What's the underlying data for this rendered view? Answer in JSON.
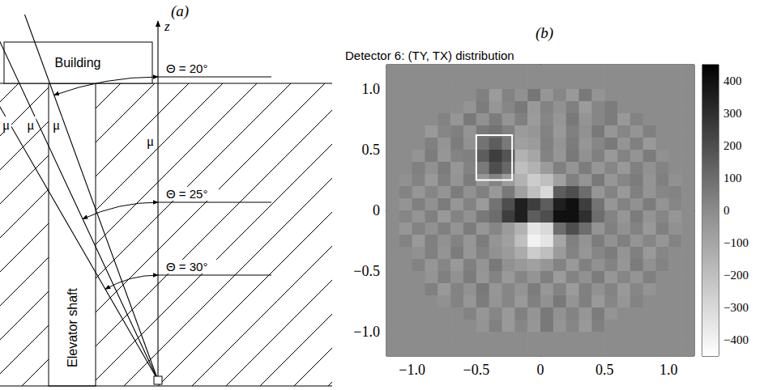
{
  "diagram": {
    "panel_label": "(a)",
    "building": "Building",
    "shaft": "Elevator shaft",
    "axis_label": "z",
    "muon_label": "μ",
    "angles": [
      {
        "value": 20,
        "label": "Θ = 20°"
      },
      {
        "value": 25,
        "label": "Θ = 25°"
      },
      {
        "value": 30,
        "label": "Θ = 30°"
      }
    ]
  },
  "chart_data": {
    "type": "heatmap",
    "panel_label": "(b)",
    "title": "Detector 6: (TY, TX) distribution",
    "xlim": [
      -1.2,
      1.2
    ],
    "xticks": [
      {
        "value": -1.0,
        "label": "−1.0"
      },
      {
        "value": -0.5,
        "label": "−0.5"
      },
      0,
      0.5,
      {
        "value": 1.0,
        "label": "1.0"
      }
    ],
    "ylim": [
      -1.2,
      1.2
    ],
    "yticks": [
      {
        "value": -1.0,
        "label": "−1.0"
      },
      {
        "value": -0.5,
        "label": "−0.5"
      },
      0,
      0.5,
      {
        "value": 1.0,
        "label": "1.0"
      }
    ],
    "colorbar": {
      "lim": [
        -450,
        450
      ],
      "ticks": [
        {
          "value": -400,
          "label": "−400"
        },
        {
          "value": -300,
          "label": "−300"
        },
        {
          "value": -200,
          "label": "−200"
        },
        {
          "value": -100,
          "label": "−100"
        },
        0,
        100,
        200,
        300,
        400
      ]
    },
    "box": {
      "x": [
        -0.5,
        -0.22
      ],
      "y": [
        0.25,
        0.62
      ]
    },
    "cell_x": [
      -1.15,
      -1.05,
      -0.95,
      -0.85,
      -0.75,
      -0.65,
      -0.55,
      -0.45,
      -0.35,
      -0.25,
      -0.15,
      -0.05,
      0.05,
      0.15,
      0.25,
      0.35,
      0.45,
      0.55,
      0.65,
      0.75,
      0.85,
      0.95,
      1.05,
      1.15
    ],
    "cell_y": [
      1.15,
      1.05,
      0.95,
      0.85,
      0.75,
      0.65,
      0.55,
      0.45,
      0.35,
      0.25,
      0.15,
      0.05,
      -0.05,
      -0.15,
      -0.25,
      -0.35,
      -0.45,
      -0.55,
      -0.65,
      -0.75,
      -0.85,
      -0.95,
      -1.05,
      -1.15
    ],
    "z": [
      [
        0,
        0,
        0,
        0,
        0,
        0,
        0,
        0,
        0,
        0,
        0,
        0,
        0,
        0,
        0,
        0,
        0,
        0,
        0,
        0,
        0,
        0,
        0,
        0
      ],
      [
        0,
        0,
        0,
        0,
        0,
        0,
        0,
        0,
        0,
        0,
        0,
        0,
        0,
        0,
        0,
        0,
        0,
        0,
        0,
        0,
        0,
        0,
        0,
        0
      ],
      [
        0,
        0,
        0,
        0,
        0,
        0,
        0,
        40,
        -60,
        30,
        -20,
        70,
        -40,
        20,
        -50,
        60,
        -30,
        0,
        0,
        0,
        0,
        0,
        0,
        0
      ],
      [
        0,
        0,
        0,
        0,
        0,
        0,
        -30,
        50,
        -40,
        20,
        60,
        -50,
        30,
        -20,
        40,
        -60,
        20,
        50,
        0,
        0,
        0,
        0,
        0,
        0
      ],
      [
        0,
        0,
        0,
        0,
        30,
        -40,
        60,
        -20,
        50,
        -30,
        40,
        -60,
        20,
        -40,
        60,
        -30,
        20,
        50,
        -50,
        30,
        0,
        0,
        0,
        0
      ],
      [
        0,
        0,
        0,
        -50,
        20,
        40,
        -30,
        60,
        80,
        40,
        -60,
        -40,
        30,
        -50,
        40,
        -20,
        60,
        -40,
        20,
        -30,
        40,
        0,
        0,
        0
      ],
      [
        0,
        0,
        0,
        40,
        -30,
        50,
        -20,
        80,
        150,
        60,
        -80,
        -60,
        40,
        -30,
        50,
        -40,
        20,
        60,
        -30,
        40,
        -50,
        0,
        0,
        0
      ],
      [
        0,
        0,
        -30,
        50,
        -40,
        30,
        40,
        150,
        250,
        180,
        -150,
        -100,
        30,
        -40,
        60,
        -20,
        40,
        -50,
        30,
        -30,
        50,
        -20,
        0,
        0
      ],
      [
        0,
        0,
        40,
        -20,
        50,
        -40,
        30,
        60,
        200,
        120,
        -200,
        -150,
        -60,
        40,
        -30,
        50,
        -40,
        20,
        -50,
        40,
        -20,
        30,
        0,
        0
      ],
      [
        0,
        -20,
        30,
        -50,
        40,
        -30,
        50,
        -40,
        30,
        -60,
        -150,
        -250,
        -200,
        -80,
        40,
        -30,
        60,
        -40,
        20,
        50,
        -30,
        40,
        -20,
        0
      ],
      [
        0,
        30,
        -40,
        20,
        -30,
        50,
        -20,
        40,
        -50,
        60,
        -80,
        -200,
        -300,
        150,
        200,
        100,
        -40,
        30,
        -50,
        40,
        -30,
        20,
        30,
        0
      ],
      [
        0,
        -30,
        40,
        -20,
        50,
        -40,
        30,
        -60,
        80,
        200,
        350,
        250,
        150,
        350,
        400,
        250,
        80,
        -40,
        30,
        -20,
        50,
        -30,
        20,
        0
      ],
      [
        0,
        20,
        -30,
        40,
        -50,
        30,
        -20,
        60,
        100,
        250,
        350,
        150,
        200,
        400,
        400,
        300,
        100,
        30,
        -40,
        50,
        -30,
        20,
        -40,
        0
      ],
      [
        0,
        -40,
        30,
        -20,
        40,
        -30,
        50,
        -40,
        20,
        -60,
        -150,
        -350,
        -300,
        100,
        200,
        100,
        -30,
        40,
        -20,
        30,
        -50,
        40,
        -20,
        0
      ],
      [
        0,
        30,
        -50,
        40,
        -20,
        30,
        -40,
        50,
        -30,
        -80,
        -200,
        -400,
        -350,
        -100,
        40,
        -30,
        50,
        -20,
        40,
        -30,
        20,
        -40,
        30,
        0
      ],
      [
        0,
        0,
        -20,
        40,
        -30,
        50,
        -40,
        30,
        -20,
        -60,
        -120,
        -250,
        -200,
        -60,
        30,
        -40,
        20,
        50,
        -30,
        40,
        -50,
        20,
        0,
        0
      ],
      [
        0,
        0,
        30,
        -40,
        20,
        -50,
        40,
        -30,
        60,
        -20,
        -50,
        -80,
        -40,
        30,
        -50,
        40,
        -20,
        30,
        -40,
        50,
        -20,
        30,
        0,
        0
      ],
      [
        0,
        0,
        0,
        -30,
        40,
        -20,
        50,
        -40,
        30,
        -50,
        20,
        -30,
        40,
        -60,
        30,
        -20,
        50,
        -40,
        20,
        -30,
        40,
        0,
        0,
        0
      ],
      [
        0,
        0,
        0,
        40,
        -50,
        30,
        -20,
        60,
        -40,
        20,
        -30,
        50,
        -40,
        30,
        -60,
        40,
        -20,
        30,
        -50,
        20,
        -30,
        0,
        0,
        0
      ],
      [
        0,
        0,
        0,
        0,
        -20,
        30,
        -40,
        50,
        -30,
        20,
        -50,
        40,
        -20,
        60,
        -30,
        40,
        -50,
        20,
        -40,
        30,
        0,
        0,
        0,
        0
      ],
      [
        0,
        0,
        0,
        0,
        0,
        0,
        30,
        -40,
        20,
        -50,
        40,
        -30,
        60,
        -20,
        30,
        -40,
        50,
        -30,
        0,
        0,
        0,
        0,
        0,
        0
      ],
      [
        0,
        0,
        0,
        0,
        0,
        0,
        0,
        -30,
        40,
        -50,
        20,
        -40,
        60,
        -30,
        20,
        -50,
        40,
        0,
        0,
        0,
        0,
        0,
        0,
        0
      ],
      [
        0,
        0,
        0,
        0,
        0,
        0,
        0,
        0,
        0,
        0,
        0,
        0,
        0,
        0,
        0,
        0,
        0,
        0,
        0,
        0,
        0,
        0,
        0,
        0
      ],
      [
        0,
        0,
        0,
        0,
        0,
        0,
        0,
        0,
        0,
        0,
        0,
        0,
        0,
        0,
        0,
        0,
        0,
        0,
        0,
        0,
        0,
        0,
        0,
        0
      ]
    ]
  }
}
